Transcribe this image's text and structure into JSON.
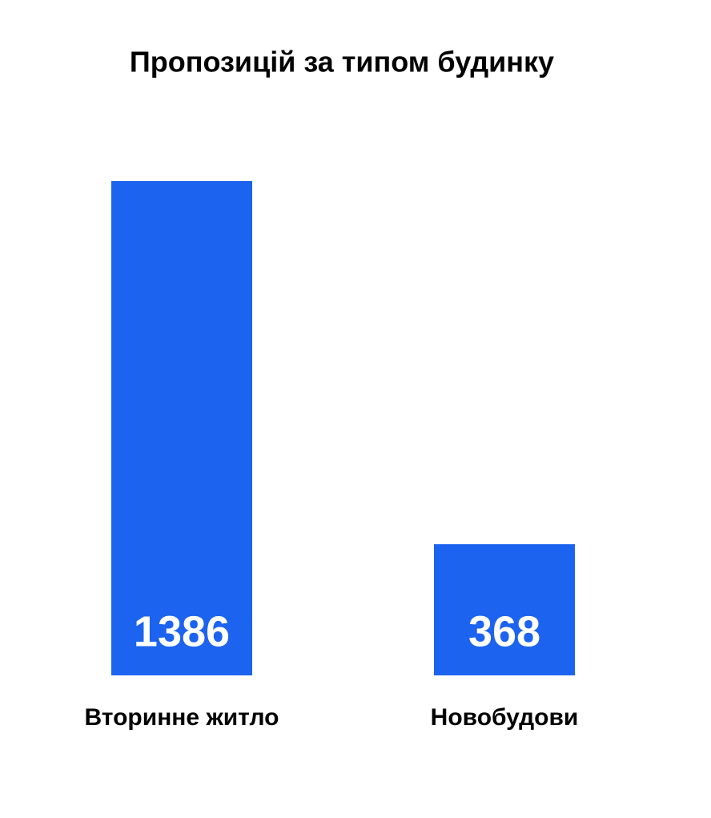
{
  "chart_data": {
    "type": "bar",
    "title": "Пропозицій за типом будинку",
    "categories": [
      "Вторинне житло",
      "Новобудови"
    ],
    "values": [
      1386,
      368
    ],
    "color": "#1c63ef"
  }
}
